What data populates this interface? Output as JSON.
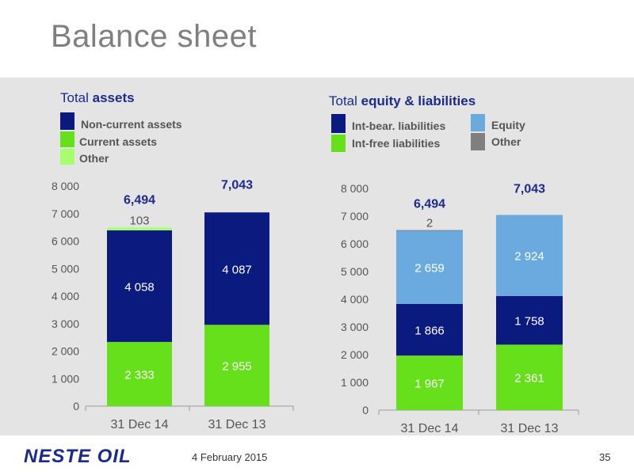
{
  "title": "Balance sheet",
  "left": {
    "title_prefix": "Total ",
    "title_bold": "assets",
    "legend": [
      {
        "label": "Non-current assets",
        "color": "#0b1a7e"
      },
      {
        "label": "Current assets",
        "color": "#66e01a"
      },
      {
        "label": "Other",
        "color": "#a8ff6e"
      }
    ]
  },
  "right": {
    "title_prefix": "Total ",
    "title_bold": "equity & liabilities",
    "legend": [
      {
        "label": "Int-bear. liabilities",
        "color": "#0b1a7e"
      },
      {
        "label": "Equity",
        "color": "#6aaade"
      },
      {
        "label": "Int-free liabilities",
        "color": "#66e01a"
      },
      {
        "label": "Other",
        "color": "#7f7f7f"
      }
    ]
  },
  "chart_data": [
    {
      "type": "bar",
      "stacked": true,
      "categories": [
        "31 Dec 14",
        "31 Dec 13"
      ],
      "ylim": [
        0,
        8000
      ],
      "yticks": [
        "0",
        "1 000",
        "2 000",
        "3 000",
        "4 000",
        "5 000",
        "6 000",
        "7 000",
        "8 000"
      ],
      "totals": [
        "6,494",
        "7,043"
      ],
      "series": [
        {
          "name": "Current assets",
          "color": "#66e01a",
          "values": [
            2333,
            2955
          ],
          "labels": [
            "2 333",
            "2 955"
          ]
        },
        {
          "name": "Non-current assets",
          "color": "#0b1a7e",
          "values": [
            4058,
            4087
          ],
          "labels": [
            "4 058",
            "4 087"
          ]
        },
        {
          "name": "Other",
          "color": "#a8ff6e",
          "values": [
            103,
            0
          ],
          "labels": [
            "103",
            ""
          ]
        }
      ]
    },
    {
      "type": "bar",
      "stacked": true,
      "categories": [
        "31 Dec 14",
        "31 Dec 13"
      ],
      "ylim": [
        0,
        8000
      ],
      "yticks": [
        "0",
        "1 000",
        "2 000",
        "3 000",
        "4 000",
        "5 000",
        "6 000",
        "7 000",
        "8 000"
      ],
      "totals": [
        "6,494",
        "7,043"
      ],
      "series": [
        {
          "name": "Int-free liabilities",
          "color": "#66e01a",
          "values": [
            1967,
            2361
          ],
          "labels": [
            "1 967",
            "2 361"
          ]
        },
        {
          "name": "Int-bear. liabilities",
          "color": "#0b1a7e",
          "values": [
            1866,
            1758
          ],
          "labels": [
            "1 866",
            "1 758"
          ]
        },
        {
          "name": "Equity",
          "color": "#6aaade",
          "values": [
            2659,
            2924
          ],
          "labels": [
            "2 659",
            "2 924"
          ]
        },
        {
          "name": "Other",
          "color": "#7f7f7f",
          "values": [
            2,
            0
          ],
          "labels": [
            "2",
            ""
          ]
        }
      ]
    }
  ],
  "footer": {
    "logo": "NESTE OIL",
    "date": "4 February 2015",
    "page": "35"
  }
}
